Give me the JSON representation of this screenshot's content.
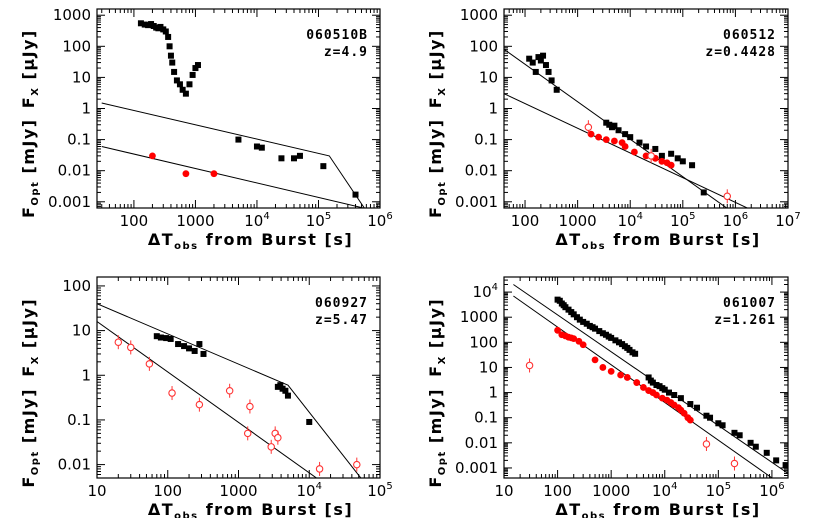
{
  "figure": {
    "xlabel_sym": "ΔT",
    "xlabel_sub": "obs",
    "xlabel_rest": " from Burst [s]",
    "ylabel_x_main": "F",
    "ylabel_x_sub": "X",
    "ylabel_x_unit": "[μJy]",
    "ylabel_opt_main": "F",
    "ylabel_opt_sub": "Opt",
    "ylabel_opt_unit": "[mJy]",
    "colors": {
      "xray": "#000000",
      "optical": "#ff0000",
      "optical_open": "#ff3333"
    }
  },
  "chart_data": [
    {
      "type": "scatter",
      "name": "060510B",
      "redshift_label": "z=4.9",
      "xrange_log": [
        1.4,
        6
      ],
      "yrange_log": [
        -3.2,
        3.2
      ],
      "x_ticks": [
        {
          "v": 100,
          "t": "100"
        },
        {
          "v": 1000,
          "t": "1000"
        },
        {
          "v": 10000,
          "b": "10",
          "e": "4"
        },
        {
          "v": 100000,
          "b": "10",
          "e": "5"
        },
        {
          "v": 1000000,
          "b": "10",
          "e": "6"
        }
      ],
      "y_ticks": [
        {
          "v": 1000,
          "t": "1000"
        },
        {
          "v": 100,
          "t": "100"
        },
        {
          "v": 10,
          "t": "10"
        },
        {
          "v": 1,
          "t": "1"
        },
        {
          "v": 0.1,
          "t": "0.1"
        },
        {
          "v": 0.01,
          "t": "0.01"
        },
        {
          "v": 0.001,
          "t": "0.001"
        }
      ],
      "xray": [
        [
          130,
          550
        ],
        [
          150,
          500
        ],
        [
          170,
          480
        ],
        [
          190,
          520
        ],
        [
          210,
          450
        ],
        [
          230,
          400
        ],
        [
          250,
          380
        ],
        [
          270,
          420
        ],
        [
          300,
          350
        ],
        [
          330,
          300
        ],
        [
          360,
          200
        ],
        [
          380,
          100
        ],
        [
          400,
          50
        ],
        [
          420,
          30
        ],
        [
          450,
          15
        ],
        [
          500,
          8
        ],
        [
          560,
          6
        ],
        [
          620,
          4
        ],
        [
          700,
          3
        ],
        [
          800,
          6
        ],
        [
          900,
          12
        ],
        [
          1000,
          20
        ],
        [
          1100,
          25
        ],
        [
          5000,
          0.1
        ],
        [
          10000,
          0.06
        ],
        [
          12000,
          0.055
        ],
        [
          25000,
          0.025
        ],
        [
          40000,
          0.025
        ],
        [
          50000,
          0.03
        ],
        [
          120000,
          0.014
        ],
        [
          400000,
          0.0017
        ]
      ],
      "optical_filled": [
        [
          200,
          0.03
        ],
        [
          700,
          0.008
        ],
        [
          2000,
          0.008
        ]
      ],
      "optical_open": [],
      "fit_lines": [
        {
          "pts": [
            [
              30,
              1.5
            ],
            [
              150000,
              0.03
            ],
            [
              600000,
              0.0005
            ]
          ],
          "color": "#000000"
        },
        {
          "pts": [
            [
              30,
              0.06
            ],
            [
              600000,
              0.0006
            ]
          ],
          "color": "#000000"
        }
      ]
    },
    {
      "type": "scatter",
      "name": "060512",
      "redshift_label": "z=0.4428",
      "xrange_log": [
        1.6,
        7
      ],
      "yrange_log": [
        -3.2,
        3.2
      ],
      "x_ticks": [
        {
          "v": 100,
          "t": "100"
        },
        {
          "v": 1000,
          "t": "1000"
        },
        {
          "v": 10000,
          "b": "10",
          "e": "4"
        },
        {
          "v": 100000,
          "b": "10",
          "e": "5"
        },
        {
          "v": 1000000,
          "b": "10",
          "e": "6"
        },
        {
          "v": 10000000,
          "b": "10",
          "e": "7"
        }
      ],
      "y_ticks": [
        {
          "v": 1000,
          "t": "1000"
        },
        {
          "v": 100,
          "t": "100"
        },
        {
          "v": 10,
          "t": "10"
        },
        {
          "v": 1,
          "t": "1"
        },
        {
          "v": 0.1,
          "t": "0.1"
        },
        {
          "v": 0.01,
          "t": "0.01"
        },
        {
          "v": 0.001,
          "t": "0.001"
        }
      ],
      "xray": [
        [
          120,
          40
        ],
        [
          140,
          30
        ],
        [
          160,
          15
        ],
        [
          180,
          45
        ],
        [
          200,
          35
        ],
        [
          220,
          50
        ],
        [
          250,
          25
        ],
        [
          280,
          15
        ],
        [
          320,
          8
        ],
        [
          400,
          4
        ],
        [
          3500,
          0.35
        ],
        [
          4000,
          0.3
        ],
        [
          4500,
          0.25
        ],
        [
          5000,
          0.28
        ],
        [
          6000,
          0.2
        ],
        [
          8000,
          0.15
        ],
        [
          10000,
          0.12
        ],
        [
          15000,
          0.08
        ],
        [
          20000,
          0.06
        ],
        [
          30000,
          0.05
        ],
        [
          40000,
          0.03
        ],
        [
          60000,
          0.035
        ],
        [
          80000,
          0.025
        ],
        [
          100000,
          0.02
        ],
        [
          150000,
          0.015
        ],
        [
          250000,
          0.002
        ]
      ],
      "optical_filled": [
        [
          1800,
          0.15
        ],
        [
          2500,
          0.12
        ],
        [
          3500,
          0.1
        ],
        [
          5000,
          0.09
        ],
        [
          7000,
          0.08
        ],
        [
          8000,
          0.06
        ],
        [
          12000,
          0.04
        ],
        [
          20000,
          0.03
        ],
        [
          30000,
          0.025
        ],
        [
          40000,
          0.02
        ],
        [
          50000,
          0.018
        ],
        [
          60000,
          0.015
        ]
      ],
      "optical_open": [
        [
          1600,
          0.25
        ],
        [
          25000,
          0.03
        ],
        [
          700000,
          0.0015
        ]
      ],
      "fit_lines": [
        {
          "pts": [
            [
              40,
              80
            ],
            [
              1000000,
              0.0004
            ]
          ],
          "color": "#000000"
        },
        {
          "pts": [
            [
              40,
              3
            ],
            [
              3000000,
              0.0004
            ]
          ],
          "color": "#000000"
        }
      ]
    },
    {
      "type": "scatter",
      "name": "060927",
      "redshift_label": "z=5.47",
      "xrange_log": [
        1,
        5
      ],
      "yrange_log": [
        -2.3,
        2.2
      ],
      "x_ticks": [
        {
          "v": 10,
          "t": "10"
        },
        {
          "v": 100,
          "t": "100"
        },
        {
          "v": 1000,
          "t": "1000"
        },
        {
          "v": 10000,
          "b": "10",
          "e": "4"
        },
        {
          "v": 100000,
          "b": "10",
          "e": "5"
        }
      ],
      "y_ticks": [
        {
          "v": 100,
          "t": "100"
        },
        {
          "v": 10,
          "t": "10"
        },
        {
          "v": 1,
          "t": "1"
        },
        {
          "v": 0.1,
          "t": "0.1"
        },
        {
          "v": 0.01,
          "t": "0.01"
        }
      ],
      "xray": [
        [
          70,
          7.5
        ],
        [
          80,
          7
        ],
        [
          95,
          6.8
        ],
        [
          110,
          6.5
        ],
        [
          140,
          5
        ],
        [
          170,
          4.5
        ],
        [
          200,
          4
        ],
        [
          240,
          3.5
        ],
        [
          280,
          5
        ],
        [
          320,
          3
        ],
        [
          3600,
          0.55
        ],
        [
          3900,
          0.6
        ],
        [
          4200,
          0.5
        ],
        [
          4600,
          0.45
        ],
        [
          5000,
          0.35
        ],
        [
          10000,
          0.09
        ]
      ],
      "optical_filled": [],
      "optical_open": [
        [
          20,
          5.5
        ],
        [
          30,
          4.2
        ],
        [
          55,
          1.8
        ],
        [
          115,
          0.4
        ],
        [
          280,
          0.22
        ],
        [
          750,
          0.45
        ],
        [
          1350,
          0.05
        ],
        [
          1450,
          0.2
        ],
        [
          2900,
          0.025
        ],
        [
          3300,
          0.05
        ],
        [
          3600,
          0.04
        ],
        [
          14000,
          0.008
        ],
        [
          47000,
          0.01
        ]
      ],
      "fit_lines": [
        {
          "pts": [
            [
              10,
              40
            ],
            [
              5000,
              0.6
            ],
            [
              60000,
              0.004
            ]
          ],
          "color": "#000000"
        },
        {
          "pts": [
            [
              10,
              16
            ],
            [
              20000,
              0.003
            ]
          ],
          "color": "#000000"
        }
      ]
    },
    {
      "type": "scatter",
      "name": "061007",
      "redshift_label": "z=1.261",
      "xrange_log": [
        1,
        6.3
      ],
      "yrange_log": [
        -3.4,
        4.6
      ],
      "x_ticks": [
        {
          "v": 10,
          "t": "10"
        },
        {
          "v": 100,
          "t": "100"
        },
        {
          "v": 1000,
          "t": "1000"
        },
        {
          "v": 10000,
          "b": "10",
          "e": "4"
        },
        {
          "v": 100000,
          "b": "10",
          "e": "5"
        },
        {
          "v": 1000000,
          "b": "10",
          "e": "6"
        }
      ],
      "y_ticks": [
        {
          "v": 10000,
          "b": "10",
          "e": "4"
        },
        {
          "v": 1000,
          "t": "1000"
        },
        {
          "v": 100,
          "t": "100"
        },
        {
          "v": 10,
          "t": "10"
        },
        {
          "v": 1,
          "t": "1"
        },
        {
          "v": 0.1,
          "t": "0.1"
        },
        {
          "v": 0.01,
          "t": "0.01"
        },
        {
          "v": 0.001,
          "t": "0.001"
        }
      ],
      "xray": [
        [
          100,
          5000
        ],
        [
          110,
          4500
        ],
        [
          120,
          3500
        ],
        [
          130,
          3000
        ],
        [
          140,
          2500
        ],
        [
          160,
          2000
        ],
        [
          180,
          1600
        ],
        [
          200,
          1300
        ],
        [
          230,
          1000
        ],
        [
          260,
          800
        ],
        [
          300,
          650
        ],
        [
          350,
          550
        ],
        [
          400,
          450
        ],
        [
          450,
          400
        ],
        [
          500,
          350
        ],
        [
          600,
          280
        ],
        [
          700,
          230
        ],
        [
          800,
          200
        ],
        [
          900,
          170
        ],
        [
          1000,
          150
        ],
        [
          1200,
          120
        ],
        [
          1400,
          100
        ],
        [
          1600,
          85
        ],
        [
          1800,
          70
        ],
        [
          2000,
          60
        ],
        [
          2200,
          50
        ],
        [
          2500,
          40
        ],
        [
          2800,
          35
        ],
        [
          5000,
          4
        ],
        [
          5500,
          3
        ],
        [
          6000,
          2.5
        ],
        [
          7000,
          2
        ],
        [
          8000,
          1.8
        ],
        [
          9000,
          1.5
        ],
        [
          10000,
          1.3
        ],
        [
          12000,
          1
        ],
        [
          15000,
          0.8
        ],
        [
          20000,
          0.6
        ],
        [
          30000,
          0.35
        ],
        [
          40000,
          0.25
        ],
        [
          60000,
          0.12
        ],
        [
          70000,
          0.1
        ],
        [
          100000,
          0.06
        ],
        [
          120000,
          0.05
        ],
        [
          200000,
          0.025
        ],
        [
          250000,
          0.02
        ],
        [
          400000,
          0.01
        ],
        [
          500000,
          0.007
        ],
        [
          800000,
          0.004
        ],
        [
          1200000,
          0.002
        ],
        [
          1800000,
          0.0013
        ]
      ],
      "optical_filled": [
        [
          100,
          300
        ],
        [
          120,
          200
        ],
        [
          140,
          180
        ],
        [
          160,
          160
        ],
        [
          180,
          150
        ],
        [
          200,
          140
        ],
        [
          250,
          110
        ],
        [
          300,
          80
        ],
        [
          500,
          20
        ],
        [
          700,
          10
        ],
        [
          1000,
          7
        ],
        [
          1500,
          5
        ],
        [
          2000,
          4
        ],
        [
          3000,
          2.5
        ],
        [
          4000,
          1.6
        ],
        [
          5000,
          1.2
        ],
        [
          6000,
          1
        ],
        [
          7000,
          0.8
        ],
        [
          9000,
          0.6
        ],
        [
          11000,
          0.5
        ],
        [
          13000,
          0.4
        ],
        [
          15000,
          0.32
        ],
        [
          18000,
          0.25
        ],
        [
          20000,
          0.2
        ],
        [
          23000,
          0.15
        ],
        [
          27000,
          0.1
        ],
        [
          30000,
          0.08
        ]
      ],
      "optical_open": [
        [
          30,
          12
        ],
        [
          60000,
          0.009
        ],
        [
          200000,
          0.0015
        ]
      ],
      "fit_lines": [
        {
          "pts": [
            [
              15,
              20000
            ],
            [
              2000000,
              0.0006
            ]
          ],
          "color": "#000000"
        },
        {
          "pts": [
            [
              15,
              7000
            ],
            [
              1000000,
              0.0004
            ]
          ],
          "color": "#000000"
        }
      ]
    }
  ]
}
